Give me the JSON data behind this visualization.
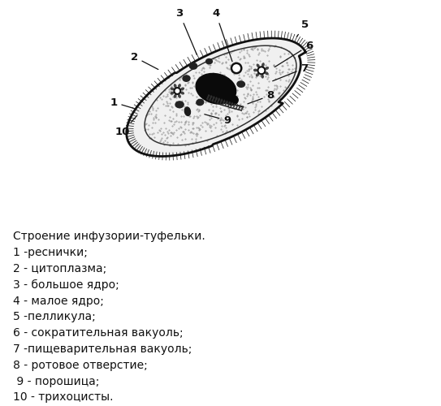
{
  "title": "Строение инфузории-туфельки.",
  "legend_lines": [
    "1 -реснички;",
    "2 - цитоплазма;",
    "3 - большое ядро;",
    "4 - малое ядро;",
    "5 -пелликула;",
    "6 - сократительная вакуоль;",
    "7 -пищеварительная вакуоль;",
    "8 - ротовое отверстие;",
    " 9 - порошица;",
    "10 - трихоцисты."
  ],
  "bg_color": "#ffffff",
  "label_color": "#111111",
  "label_fontsize": 9.5,
  "legend_fontsize": 10,
  "title_fontsize": 10
}
